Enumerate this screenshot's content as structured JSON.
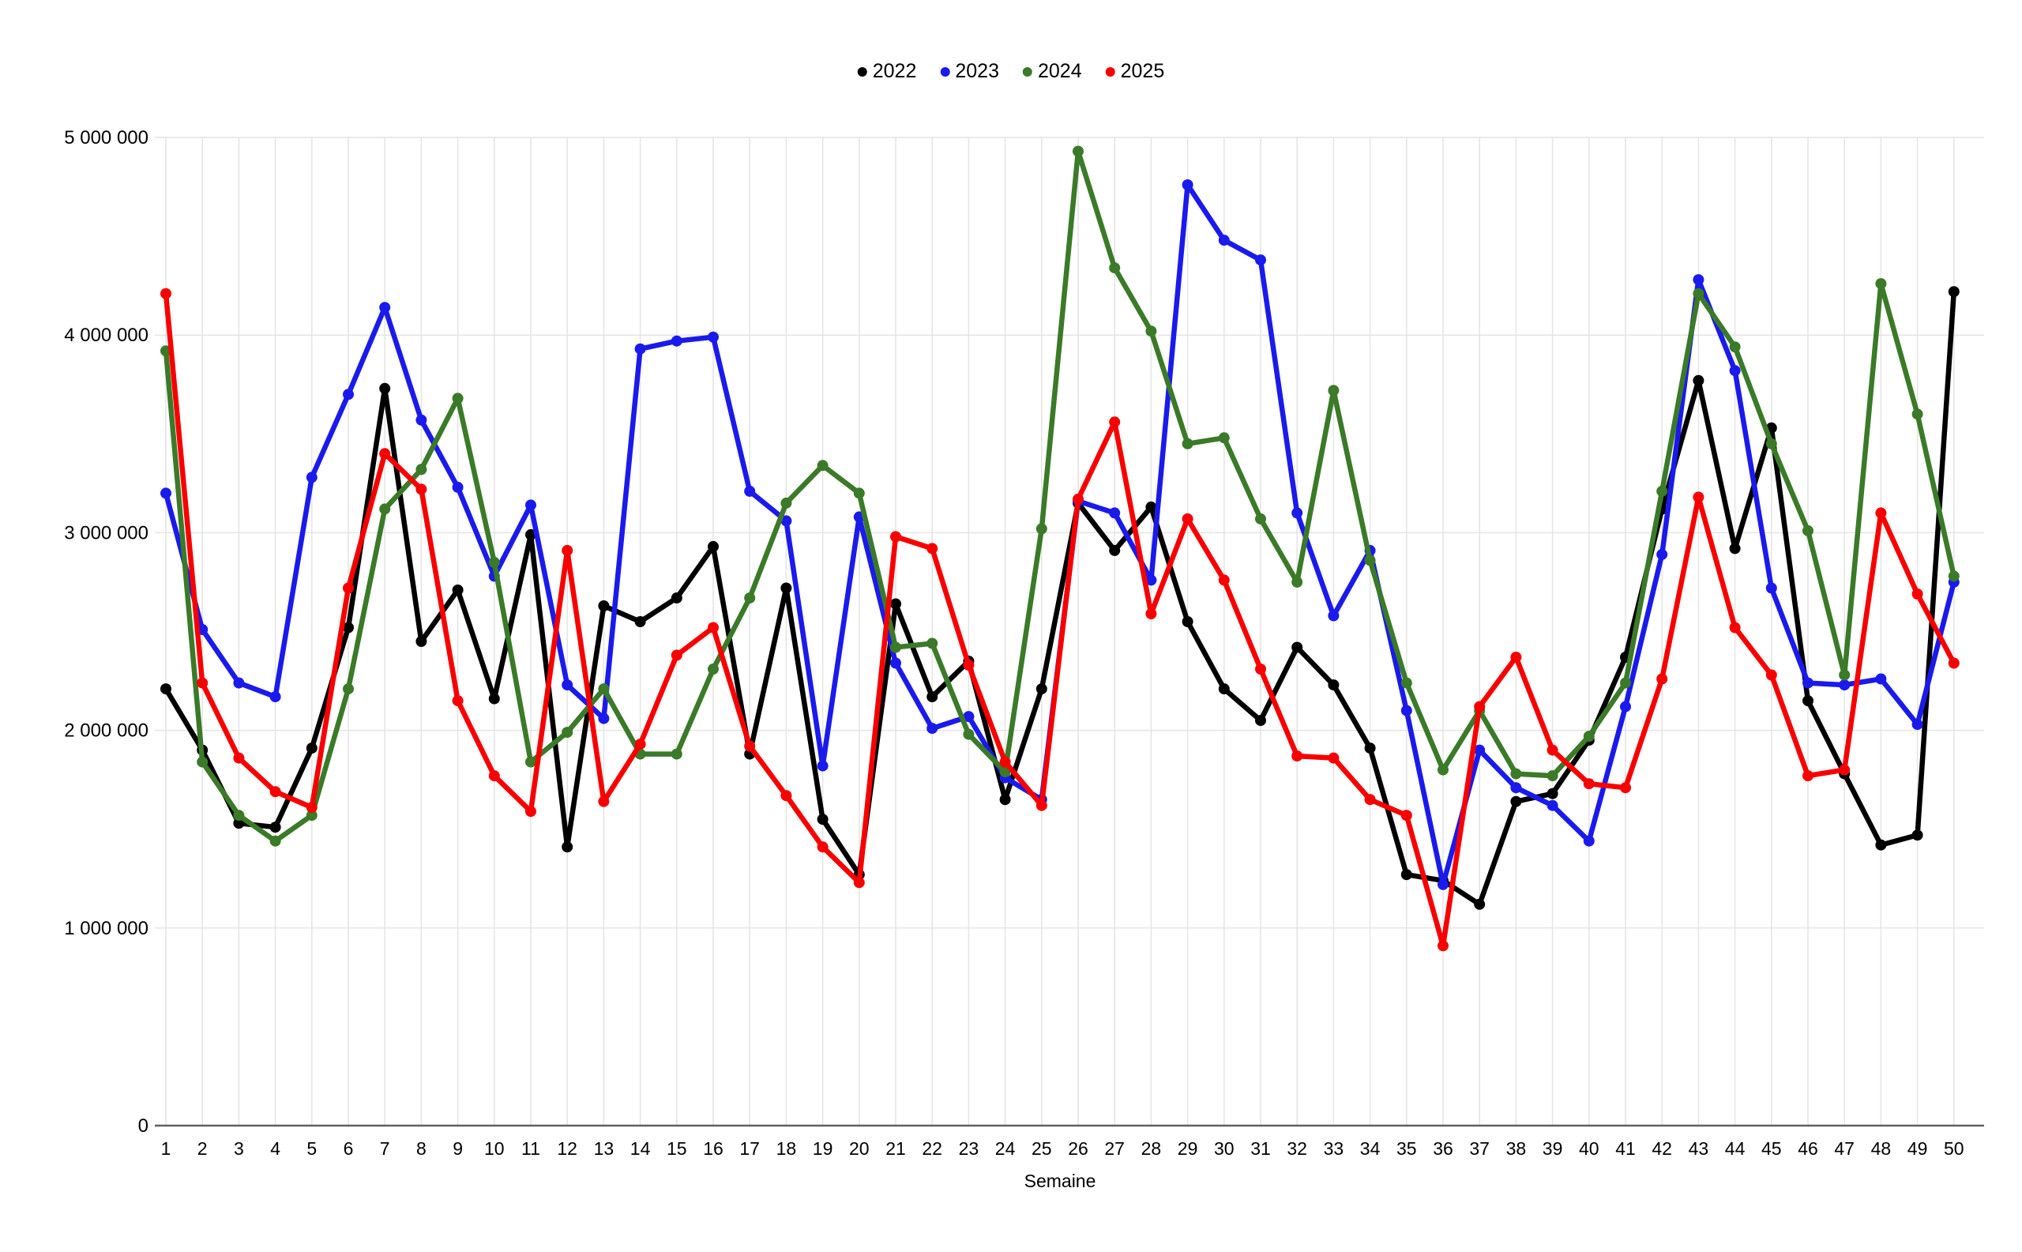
{
  "chart_data": {
    "type": "line",
    "title": "",
    "xlabel": "Semaine",
    "legend_position": "top-center",
    "grid": true,
    "x": [
      1,
      2,
      3,
      4,
      5,
      6,
      7,
      8,
      9,
      10,
      11,
      12,
      13,
      14,
      15,
      16,
      17,
      18,
      19,
      20,
      21,
      22,
      23,
      24,
      25,
      26,
      27,
      28,
      29,
      30,
      31,
      32,
      33,
      34,
      35,
      36,
      37,
      38,
      39,
      40,
      41,
      42,
      43,
      44,
      45,
      46,
      47,
      48,
      49,
      50
    ],
    "y_axis": {
      "min": 0,
      "max": 5000000,
      "tick_interval": 1000000,
      "tick_labels": [
        "0",
        "1 000 000",
        "2 000 000",
        "3 000 000",
        "4 000 000",
        "5 000 000"
      ]
    },
    "series": [
      {
        "name": "2022",
        "color": "#000000",
        "values": [
          2210000,
          1900000,
          1530000,
          1510000,
          1910000,
          2520000,
          3730000,
          2450000,
          2710000,
          2160000,
          2990000,
          1410000,
          2630000,
          2550000,
          2670000,
          2930000,
          1880000,
          2720000,
          1550000,
          1270000,
          2640000,
          2170000,
          2350000,
          1650000,
          2210000,
          3150000,
          2910000,
          3130000,
          2550000,
          2210000,
          2050000,
          2420000,
          2230000,
          1910000,
          1270000,
          1240000,
          1120000,
          1640000,
          1680000,
          1950000,
          2370000,
          3120000,
          3770000,
          2920000,
          3530000,
          2150000,
          1780000,
          1420000,
          1470000,
          4220000
        ]
      },
      {
        "name": "2023",
        "color": "#1a1aec",
        "values": [
          3200000,
          2510000,
          2240000,
          2170000,
          3280000,
          3700000,
          4140000,
          3570000,
          3230000,
          2780000,
          3140000,
          2230000,
          2060000,
          3930000,
          3970000,
          3990000,
          3210000,
          3060000,
          1820000,
          3080000,
          2340000,
          2010000,
          2070000,
          1760000,
          1650000,
          3160000,
          3100000,
          2760000,
          4760000,
          4480000,
          4380000,
          3100000,
          2580000,
          2910000,
          2100000,
          1220000,
          1900000,
          1710000,
          1620000,
          1440000,
          2120000,
          2890000,
          4280000,
          3820000,
          2720000,
          2240000,
          2230000,
          2260000,
          2030000,
          2750000
        ]
      },
      {
        "name": "2024",
        "color": "#3a7a28",
        "values": [
          3920000,
          1840000,
          1570000,
          1440000,
          1570000,
          2210000,
          3120000,
          3320000,
          3680000,
          2850000,
          1840000,
          1990000,
          2210000,
          1880000,
          1880000,
          2310000,
          2670000,
          3150000,
          3340000,
          3200000,
          2420000,
          2440000,
          1980000,
          1790000,
          3020000,
          4930000,
          4340000,
          4020000,
          3450000,
          3480000,
          3070000,
          2750000,
          3720000,
          2860000,
          2240000,
          1800000,
          2100000,
          1780000,
          1770000,
          1970000,
          2240000,
          3210000,
          4210000,
          3940000,
          3450000,
          3010000,
          2280000,
          4260000,
          3600000,
          2780000
        ]
      },
      {
        "name": "2025",
        "color": "#f80000",
        "values": [
          4210000,
          2240000,
          1860000,
          1690000,
          1610000,
          2720000,
          3400000,
          3220000,
          2150000,
          1770000,
          1590000,
          2910000,
          1640000,
          1930000,
          2380000,
          2520000,
          1920000,
          1670000,
          1410000,
          1230000,
          2980000,
          2920000,
          2330000,
          1840000,
          1620000,
          3170000,
          3560000,
          2590000,
          3070000,
          2760000,
          2310000,
          1870000,
          1860000,
          1650000,
          1570000,
          910000,
          2120000,
          2370000,
          1900000,
          1730000,
          1710000,
          2260000,
          3180000,
          2520000,
          2280000,
          1770000,
          1800000,
          3100000,
          2690000,
          2340000
        ]
      }
    ]
  }
}
